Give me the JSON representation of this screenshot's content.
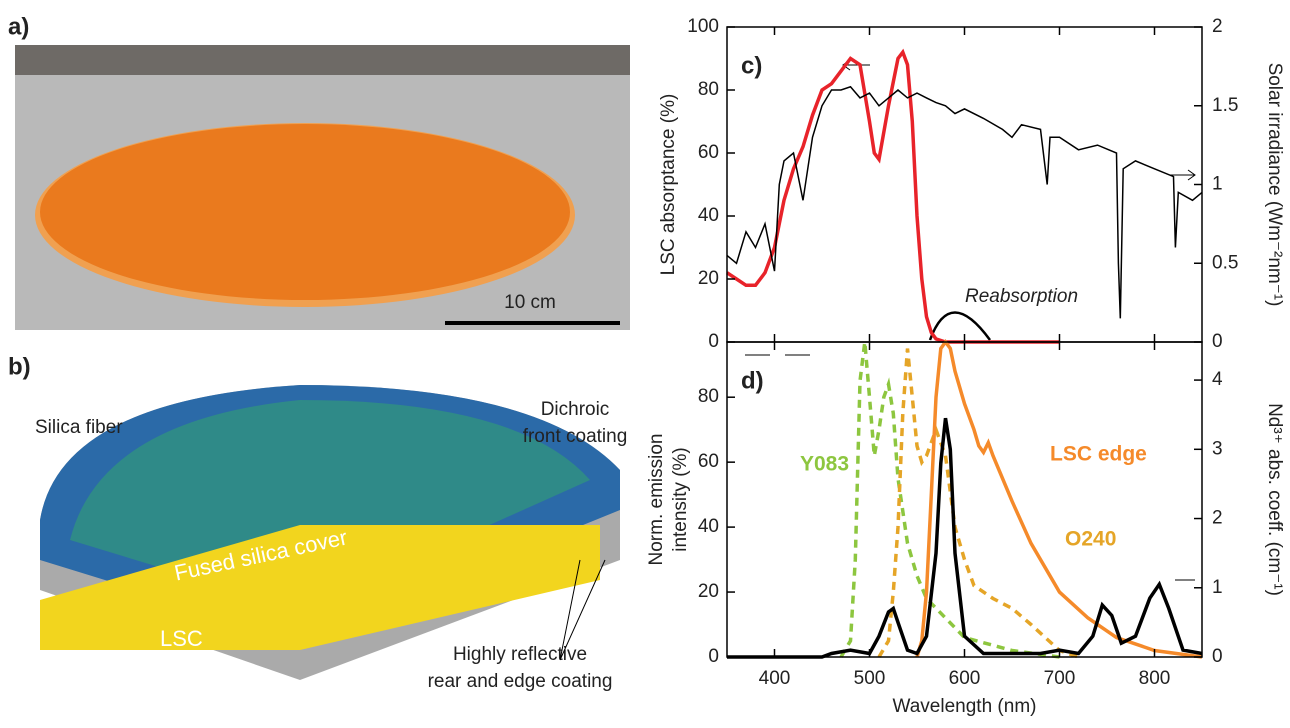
{
  "panel_a": {
    "label": "a)",
    "scale_bar": "10 cm"
  },
  "panel_b": {
    "label": "b)",
    "silica_fiber": "Silica fiber",
    "dichroic": [
      "Dichroic",
      "front coating"
    ],
    "cover": "Fused silica  cover",
    "lsc": "LSC",
    "reflective": [
      "Highly reflective",
      "rear and edge coating"
    ]
  },
  "chart_data": [
    {
      "type": "line",
      "label": "c)",
      "annotation": "Reabsorption",
      "ylabel": "LSC absorptance (%)",
      "y2label": "Solar irradiance (Wm⁻²nm⁻¹)",
      "xlim": [
        350,
        850
      ],
      "ylim": [
        0,
        100
      ],
      "yticks": [
        0,
        20,
        40,
        60,
        80,
        100
      ],
      "y2lim": [
        0,
        2
      ],
      "y2ticks": [
        0,
        0.5,
        1,
        1.5,
        2
      ],
      "series": [
        {
          "color": "#e8232a",
          "x": [
            350,
            360,
            370,
            380,
            390,
            400,
            410,
            420,
            430,
            440,
            450,
            460,
            470,
            480,
            490,
            500,
            505,
            510,
            520,
            530,
            535,
            540,
            545,
            550,
            555,
            560,
            565,
            570,
            580,
            600,
            700
          ],
          "values": [
            22,
            20,
            18,
            18,
            22,
            30,
            45,
            55,
            62,
            72,
            80,
            82,
            86,
            90,
            88,
            70,
            60,
            58,
            75,
            90,
            92,
            88,
            70,
            40,
            20,
            8,
            3,
            1,
            0,
            0,
            0
          ]
        },
        {
          "color": "#000000",
          "axis": "y2",
          "x": [
            350,
            360,
            370,
            380,
            390,
            400,
            405,
            410,
            420,
            430,
            440,
            450,
            460,
            470,
            480,
            490,
            500,
            510,
            520,
            530,
            540,
            550,
            560,
            570,
            580,
            590,
            600,
            620,
            640,
            650,
            660,
            680,
            687,
            690,
            700,
            720,
            740,
            760,
            762,
            764,
            767,
            780,
            800,
            820,
            822,
            825,
            840,
            850
          ],
          "values": [
            0.55,
            0.5,
            0.7,
            0.6,
            0.75,
            0.45,
            1.0,
            1.15,
            1.2,
            0.9,
            1.3,
            1.5,
            1.6,
            1.6,
            1.62,
            1.55,
            1.58,
            1.5,
            1.55,
            1.6,
            1.55,
            1.58,
            1.55,
            1.52,
            1.5,
            1.45,
            1.48,
            1.42,
            1.35,
            1.3,
            1.38,
            1.35,
            1.0,
            1.3,
            1.3,
            1.22,
            1.25,
            1.2,
            0.5,
            0.15,
            1.1,
            1.15,
            1.1,
            1.05,
            0.6,
            0.95,
            0.9,
            0.95
          ]
        }
      ]
    },
    {
      "type": "line",
      "label": "d)",
      "xlabel": "Wavelength (nm)",
      "ylabel": [
        "Norm. emission",
        "intensity (%)"
      ],
      "y2label": "Nd³⁺ abs. coeff. (cm⁻¹)",
      "xlim": [
        350,
        850
      ],
      "xticks": [
        400,
        500,
        600,
        700,
        800
      ],
      "ylim": [
        0,
        97
      ],
      "yticks": [
        0,
        20,
        40,
        60,
        80
      ],
      "y2lim": [
        0,
        4.55
      ],
      "y2ticks": [
        0,
        1,
        2,
        3,
        4
      ],
      "series": [
        {
          "name": "Y083",
          "color": "#8dc63f",
          "dash": true,
          "x": [
            470,
            480,
            485,
            490,
            495,
            500,
            505,
            510,
            515,
            520,
            525,
            530,
            540,
            550,
            560,
            580,
            600,
            650,
            700
          ],
          "values": [
            0,
            5,
            30,
            85,
            97,
            80,
            62,
            70,
            80,
            84,
            75,
            55,
            35,
            25,
            18,
            12,
            6,
            2,
            0
          ]
        },
        {
          "name": "O240",
          "color": "#e5a527",
          "dash": true,
          "x": [
            510,
            520,
            525,
            530,
            535,
            540,
            545,
            550,
            555,
            560,
            570,
            580,
            590,
            600,
            610,
            630,
            650,
            670,
            700,
            720
          ],
          "values": [
            0,
            5,
            20,
            40,
            75,
            95,
            80,
            65,
            60,
            62,
            70,
            62,
            40,
            30,
            22,
            18,
            15,
            10,
            2,
            0
          ]
        },
        {
          "name": "LSC edge",
          "color": "#f58a2a",
          "x": [
            550,
            555,
            560,
            565,
            570,
            575,
            580,
            585,
            590,
            600,
            610,
            615,
            620,
            625,
            630,
            650,
            670,
            700,
            730,
            760,
            800,
            850
          ],
          "values": [
            0,
            5,
            20,
            50,
            80,
            95,
            97,
            95,
            88,
            78,
            70,
            65,
            63,
            66,
            62,
            48,
            35,
            20,
            12,
            6,
            2,
            0
          ]
        },
        {
          "color": "#000000",
          "axis": "y2",
          "x": [
            350,
            450,
            460,
            480,
            500,
            510,
            520,
            525,
            530,
            540,
            550,
            560,
            570,
            575,
            580,
            585,
            590,
            600,
            620,
            680,
            700,
            720,
            735,
            745,
            755,
            765,
            780,
            795,
            805,
            815,
            830,
            850
          ],
          "values": [
            0,
            0,
            0.05,
            0.1,
            0.05,
            0.3,
            0.65,
            0.7,
            0.5,
            0.1,
            0.05,
            0.3,
            1.5,
            2.8,
            3.45,
            3.0,
            1.5,
            0.3,
            0.05,
            0.05,
            0.1,
            0.05,
            0.3,
            0.75,
            0.6,
            0.2,
            0.3,
            0.85,
            1.05,
            0.7,
            0.1,
            0.05
          ]
        }
      ]
    }
  ]
}
